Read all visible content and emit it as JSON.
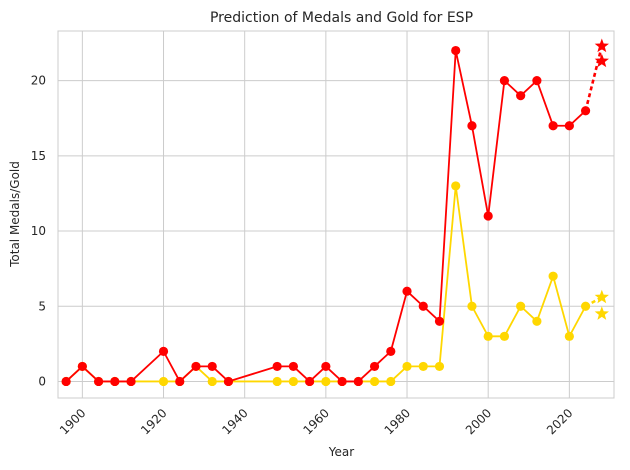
{
  "chart_data": {
    "type": "line",
    "title": "Prediction of Medals and Gold for ESP",
    "xlabel": "Year",
    "ylabel": "Total Medals/Gold",
    "xlim": [
      1894,
      2031
    ],
    "ylim": [
      -1.1,
      23.3
    ],
    "xticks": [
      1900,
      1920,
      1940,
      1960,
      1980,
      2000,
      2020
    ],
    "yticks": [
      0,
      5,
      10,
      15,
      20
    ],
    "grid": true,
    "legend": "none",
    "series": [
      {
        "color": "#ff0000",
        "points": [
          [
            1896,
            0
          ],
          [
            1900,
            1
          ],
          [
            1904,
            0
          ],
          [
            1908,
            0
          ],
          [
            1912,
            0
          ],
          [
            1920,
            2
          ],
          [
            1924,
            0
          ],
          [
            1928,
            1
          ],
          [
            1932,
            1
          ],
          [
            1936,
            0
          ],
          [
            1948,
            1
          ],
          [
            1952,
            1
          ],
          [
            1956,
            0
          ],
          [
            1960,
            1
          ],
          [
            1964,
            0
          ],
          [
            1968,
            0
          ],
          [
            1972,
            1
          ],
          [
            1976,
            2
          ],
          [
            1980,
            6
          ],
          [
            1984,
            5
          ],
          [
            1988,
            4
          ],
          [
            1992,
            22
          ],
          [
            1996,
            17
          ],
          [
            2000,
            11
          ],
          [
            2004,
            20
          ],
          [
            2008,
            19
          ],
          [
            2012,
            20
          ],
          [
            2016,
            17
          ],
          [
            2020,
            17
          ],
          [
            2024,
            18
          ]
        ],
        "prediction": [
          [
            2028,
            21.3
          ],
          [
            2028,
            22.3
          ]
        ]
      },
      {
        "color": "#ffd700",
        "points": [
          [
            1896,
            0
          ],
          [
            1900,
            1
          ],
          [
            1904,
            0
          ],
          [
            1908,
            0
          ],
          [
            1912,
            0
          ],
          [
            1920,
            0
          ],
          [
            1924,
            0
          ],
          [
            1928,
            1
          ],
          [
            1932,
            0
          ],
          [
            1936,
            0
          ],
          [
            1948,
            0
          ],
          [
            1952,
            0
          ],
          [
            1956,
            0
          ],
          [
            1960,
            0
          ],
          [
            1964,
            0
          ],
          [
            1968,
            0
          ],
          [
            1972,
            0
          ],
          [
            1976,
            0
          ],
          [
            1980,
            1
          ],
          [
            1984,
            1
          ],
          [
            1988,
            1
          ],
          [
            1992,
            13
          ],
          [
            1996,
            5
          ],
          [
            2000,
            3
          ],
          [
            2004,
            3
          ],
          [
            2008,
            5
          ],
          [
            2012,
            4
          ],
          [
            2016,
            7
          ],
          [
            2020,
            3
          ],
          [
            2024,
            5
          ]
        ],
        "prediction": [
          [
            2028,
            4.5
          ],
          [
            2028,
            5.6
          ]
        ]
      }
    ]
  }
}
